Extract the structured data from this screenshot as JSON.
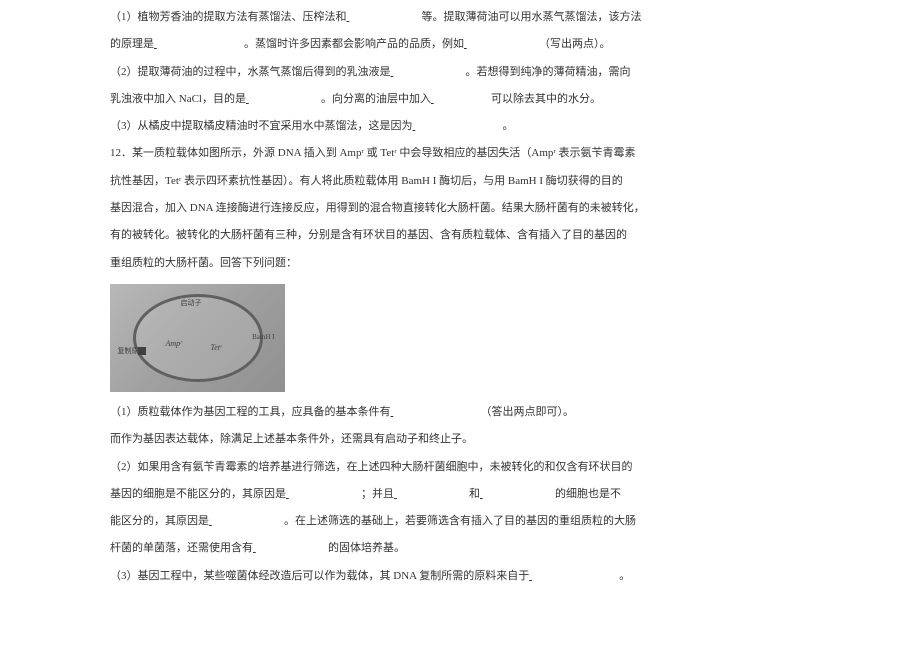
{
  "q11": {
    "p1_a": "（1）植物芳香油的提取方法有蒸馏法、压榨法和",
    "p1_b": "等。提取薄荷油可以用水蒸气蒸馏法，该方法",
    "p2_a": "的原理是",
    "p2_b": "。蒸馏时许多因素都会影响产品的品质，例如",
    "p2_c": "（写出两点）。",
    "p3_a": "（2）提取薄荷油的过程中，水蒸气蒸馏后得到的乳浊液是",
    "p3_b": "。若想得到纯净的薄荷精油，需向",
    "p4_a": "乳浊液中加入 NaCl，目的是",
    "p4_b": "。向分离的油层中加入",
    "p4_c": "可以除去其中的水分。",
    "p5_a": "（3）从橘皮中提取橘皮精油时不宜采用水中蒸馏法，这是因为",
    "p5_b": "。"
  },
  "q12": {
    "intro1": "12．某一质粒载体如图所示，外源 DNA 插入到 Ampʳ 或 Tetʳ 中会导致相应的基因失活（Ampʳ 表示氨苄青霉素",
    "intro2": "抗性基因，Tetʳ 表示四环素抗性基因）。有人将此质粒载体用 BamH I 酶切后，与用 BamH I 酶切获得的目的",
    "intro3": "基因混合，加入 DNA 连接酶进行连接反应，用得到的混合物直接转化大肠杆菌。结果大肠杆菌有的未被转化，",
    "intro4": "有的被转化。被转化的大肠杆菌有三种，分别是含有环状目的基因、含有质粒载体、含有插入了目的基因的",
    "intro5": "重组质粒的大肠杆菌。回答下列问题：",
    "image": {
      "amp": "Ampʳ",
      "tet": "Tetʳ",
      "bamh": "BamH I",
      "origin": "复制原点",
      "top": "启动子"
    },
    "p1_a": "（1）质粒载体作为基因工程的工具，应具备的基本条件有",
    "p1_b": "（答出两点即可）。",
    "p2": "而作为基因表达载体，除满足上述基本条件外，还需具有启动子和终止子。",
    "p3_a": "（2）如果用含有氨苄青霉素的培养基进行筛选，在上述四种大肠杆菌细胞中，未被转化的和仅含有环状目的",
    "p4_a": "基因的细胞是不能区分的，其原因是",
    "p4_b": "；并且",
    "p4_c": "和",
    "p4_d": "的细胞也是不",
    "p5_a": "能区分的，其原因是",
    "p5_b": "。在上述筛选的基础上，若要筛选含有插入了目的基因的重组质粒的大肠",
    "p6_a": "杆菌的单菌落，还需使用含有",
    "p6_b": "的固体培养基。",
    "p7_a": "（3）基因工程中，某些噬菌体经改造后可以作为载体，其 DNA 复制所需的原料来自于",
    "p7_b": "。"
  }
}
